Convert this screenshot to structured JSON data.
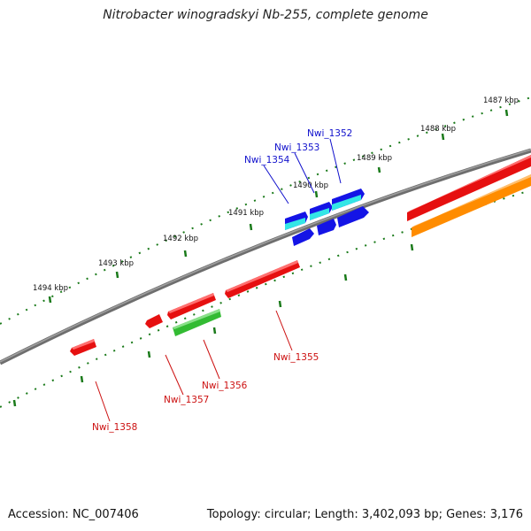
{
  "title": "Nitrobacter winogradskyi Nb-255, complete genome",
  "footer": {
    "accession": "Accession: NC_007406",
    "summary": "Topology: circular; Length: 3,402,093 bp; Genes: 3,176"
  },
  "scale_labels": [
    "1487 kbp",
    "1488 kbp",
    "1489 kbp",
    "1490 kbp",
    "1491 kbp",
    "1492 kbp",
    "1493 kbp",
    "1494 kbp"
  ],
  "gene_labels": [
    "Nwi_1352",
    "Nwi_1353",
    "Nwi_1354",
    "Nwi_1355",
    "Nwi_1356",
    "Nwi_1357",
    "Nwi_1358"
  ],
  "colors": {
    "backbone": "#888888",
    "tick": "#1a7a1a",
    "cds_red": "#e61010",
    "cds_blue": "#1414e6",
    "cds_cyan": "#33e6e6",
    "cds_green": "#33bb33",
    "cds_orange": "#ff8c00"
  }
}
